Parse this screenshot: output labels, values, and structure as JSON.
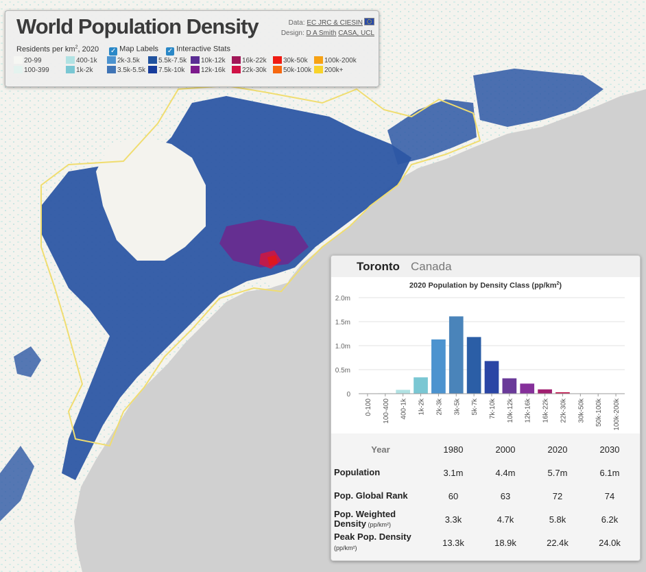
{
  "legend": {
    "title": "World Population Density",
    "data_label": "Data:",
    "data_link": "EC JRC & CIESIN",
    "design_label": "Design:",
    "design_author": "D A Smith",
    "design_org": "CASA, UCL",
    "residents_label": "Residents per km",
    "residents_sup": "2",
    "residents_year": ", 2020",
    "map_labels": "Map Labels",
    "interactive_stats": "Interactive Stats",
    "classes": [
      {
        "label": "20-99",
        "color": "#f6f7f3"
      },
      {
        "label": "100-399",
        "color": "#e4f3ef"
      },
      {
        "label": "400-1k",
        "color": "#b1e2e3"
      },
      {
        "label": "1k-2k",
        "color": "#7ac7d3"
      },
      {
        "label": "2k-3.5k",
        "color": "#4c93cf"
      },
      {
        "label": "3.5k-5.5k",
        "color": "#4074b5"
      },
      {
        "label": "5.5k-7.5k",
        "color": "#21539f"
      },
      {
        "label": "7.5k-10k",
        "color": "#173c9b"
      },
      {
        "label": "10k-12k",
        "color": "#5a2d94"
      },
      {
        "label": "12k-16k",
        "color": "#7d1b8d"
      },
      {
        "label": "16k-22k",
        "color": "#a11758"
      },
      {
        "label": "22k-30k",
        "color": "#cf1246"
      },
      {
        "label": "30k-50k",
        "color": "#ef1b12"
      },
      {
        "label": "50k-100k",
        "color": "#f6680f"
      },
      {
        "label": "100k-200k",
        "color": "#f6a214"
      },
      {
        "label": "200k+",
        "color": "#f8d32b"
      }
    ]
  },
  "city": {
    "name": "Toronto",
    "country": "Canada"
  },
  "chart_data": {
    "type": "bar",
    "title": "2020 Population by Density Class (pp/km",
    "title_sup": "2",
    "title_end": ")",
    "categories": [
      "0-100",
      "100-400",
      "400-1k",
      "1k-2k",
      "2k-3k",
      "3k-5k",
      "5k-7k",
      "7k-10k",
      "10k-12k",
      "12k-16k",
      "16k-22k",
      "22k-30k",
      "30k-50k",
      "50k-100k",
      "100k-200k"
    ],
    "values": [
      0.002,
      0.01,
      0.08,
      0.34,
      1.13,
      1.61,
      1.18,
      0.68,
      0.32,
      0.21,
      0.09,
      0.03,
      0.005,
      0.002,
      0
    ],
    "colors": [
      "#f6f7f3",
      "#e4f3ef",
      "#b1e2e3",
      "#7ac7d3",
      "#4c93cf",
      "#4a84ba",
      "#2b5ea6",
      "#2a45a5",
      "#6a3a99",
      "#85309a",
      "#a11f70",
      "#c2124c",
      "#e0141d",
      "#f6680f",
      "#f6a214"
    ],
    "ylim": [
      0,
      2.0
    ],
    "yticks": [
      "0",
      "0.5m",
      "1.0m",
      "1.5m",
      "2.0m"
    ],
    "ytick_values": [
      0,
      0.5,
      1.0,
      1.5,
      2.0
    ],
    "grid": true
  },
  "stats": {
    "year_label": "Year",
    "years": [
      "1980",
      "2000",
      "2020",
      "2030"
    ],
    "rows": [
      {
        "label": "Population",
        "unit": "",
        "values": [
          "3.1m",
          "4.4m",
          "5.7m",
          "6.1m"
        ]
      },
      {
        "label": "Pop. Global Rank",
        "unit": "",
        "values": [
          "60",
          "63",
          "72",
          "74"
        ]
      },
      {
        "label": "Pop. Weighted Density",
        "unit": "(pp/km²)",
        "values": [
          "3.3k",
          "4.7k",
          "5.8k",
          "6.2k"
        ]
      },
      {
        "label": "Peak Pop. Density",
        "unit": "(pp/km²)",
        "values": [
          "13.3k",
          "18.9k",
          "22.4k",
          "24.0k"
        ]
      }
    ]
  },
  "map": {
    "water_color": "#d0d0d0",
    "land_color": "#f4f3ee",
    "boundary_color": "#f0dd70"
  }
}
